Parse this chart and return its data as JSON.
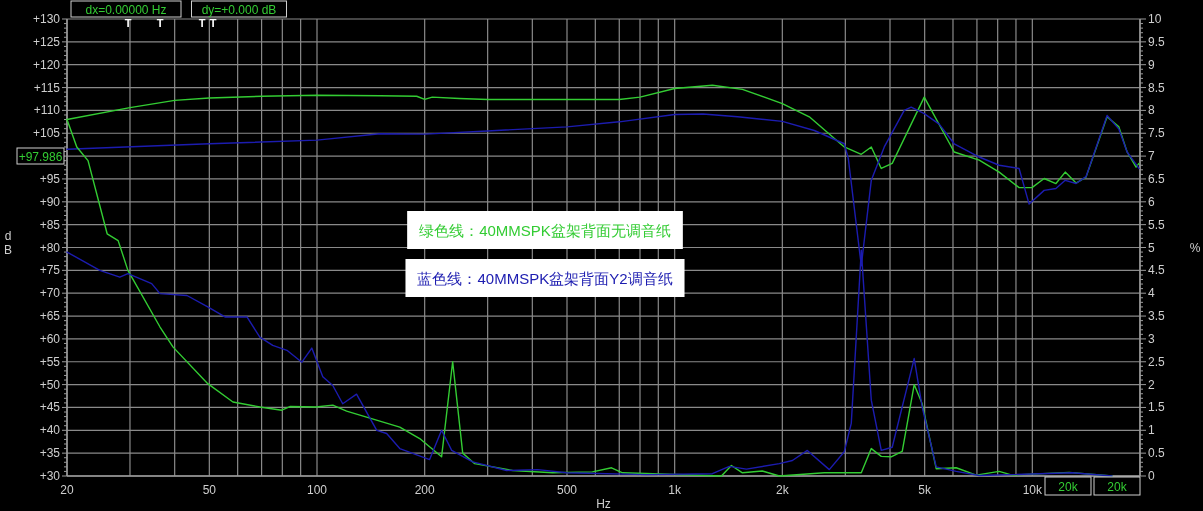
{
  "chart_data": {
    "type": "line",
    "xlabel": "Hz",
    "ylabel": "dB",
    "y2label": "%",
    "log": "x",
    "grid": true,
    "legend": "center",
    "marker": "none",
    "line_style": "solid",
    "xlim": [
      20,
      20000
    ],
    "ylim": [
      30,
      130
    ],
    "y2lim": [
      0,
      10
    ],
    "xticks": [
      {
        "value": 20,
        "label": "20"
      },
      {
        "value": 30,
        "label": null
      },
      {
        "value": 40,
        "label": null
      },
      {
        "value": 50,
        "label": "50"
      },
      {
        "value": 60,
        "label": null
      },
      {
        "value": 70,
        "label": null
      },
      {
        "value": 80,
        "label": null
      },
      {
        "value": 90,
        "label": null
      },
      {
        "value": 100,
        "label": "100"
      },
      {
        "value": 200,
        "label": "200"
      },
      {
        "value": 300,
        "label": null
      },
      {
        "value": 400,
        "label": null
      },
      {
        "value": 500,
        "label": "500"
      },
      {
        "value": 600,
        "label": null
      },
      {
        "value": 700,
        "label": null
      },
      {
        "value": 800,
        "label": null
      },
      {
        "value": 900,
        "label": null
      },
      {
        "value": 1000,
        "label": "1k"
      },
      {
        "value": 2000,
        "label": "2k"
      },
      {
        "value": 3000,
        "label": null
      },
      {
        "value": 4000,
        "label": null
      },
      {
        "value": 5000,
        "label": "5k"
      },
      {
        "value": 6000,
        "label": null
      },
      {
        "value": 7000,
        "label": null
      },
      {
        "value": 8000,
        "label": null
      },
      {
        "value": 9000,
        "label": null
      },
      {
        "value": 10000,
        "label": "10k"
      },
      {
        "value": 20000,
        "label": null
      }
    ],
    "yticks": [
      {
        "value": 30,
        "label": "+30"
      },
      {
        "value": 35,
        "label": "+35"
      },
      {
        "value": 40,
        "label": "+40"
      },
      {
        "value": 45,
        "label": "+45"
      },
      {
        "value": 50,
        "label": "+50"
      },
      {
        "value": 55,
        "label": "+55"
      },
      {
        "value": 60,
        "label": "+60"
      },
      {
        "value": 65,
        "label": "+65"
      },
      {
        "value": 70,
        "label": "+70"
      },
      {
        "value": 75,
        "label": "+75"
      },
      {
        "value": 80,
        "label": "+80"
      },
      {
        "value": 85,
        "label": "+85"
      },
      {
        "value": 90,
        "label": "+90"
      },
      {
        "value": 95,
        "label": "+95"
      },
      {
        "value": 100,
        "label": null
      },
      {
        "value": 105,
        "label": "+105"
      },
      {
        "value": 110,
        "label": "+110"
      },
      {
        "value": 115,
        "label": "+115"
      },
      {
        "value": 120,
        "label": "+120"
      },
      {
        "value": 125,
        "label": "+125"
      },
      {
        "value": 130,
        "label": "+130"
      }
    ],
    "y2ticks": [
      0,
      0.5,
      1,
      1.5,
      2,
      2.5,
      3,
      3.5,
      4,
      4.5,
      5,
      5.5,
      6,
      6.5,
      7,
      7.5,
      8,
      8.5,
      9,
      9.5,
      10
    ],
    "annotations": [
      "dx=0.00000  Hz",
      "dy=+0.000  dB",
      "20k",
      "20k",
      "+97.986",
      "T",
      "T",
      "T",
      "T"
    ],
    "series": [
      {
        "name": "绿色线：40MMSPK盆架背面无调音纸",
        "color": "#33cc33",
        "x": [
          20,
          30,
          40,
          50,
          70,
          100,
          150,
          190,
          200,
          210,
          250,
          300,
          700,
          800,
          1000,
          1275,
          1547,
          2000,
          2379,
          2980,
          3325,
          3546,
          3781,
          4057,
          4986,
          6047,
          7103,
          8077,
          9183,
          9978,
          10790,
          11640,
          12360,
          13250,
          14130,
          16180,
          17460,
          18410,
          19500,
          19870
        ],
        "values": [
          108.0,
          110.6,
          112.2,
          112.7,
          113.1,
          113.3,
          113.2,
          113.1,
          112.4,
          112.9,
          112.6,
          112.4,
          112.4,
          112.9,
          114.8,
          115.5,
          114.6,
          111.5,
          108.6,
          102.0,
          100.4,
          102.0,
          97.3,
          98.4,
          112.9,
          100.9,
          99.1,
          96.5,
          93.1,
          93.1,
          95.1,
          94.0,
          96.5,
          94.1,
          95.4,
          108.6,
          106.4,
          100.9,
          97.6,
          98.4
        ]
      },
      {
        "name": "蓝色线：40MMSPK盆架背面Y2调音纸",
        "color": "#1c1cb0",
        "x": [
          20,
          50,
          100,
          150,
          200,
          300,
          500,
          700,
          1000,
          1200,
          1500,
          2000,
          2457,
          2980,
          3058,
          3325,
          3546,
          3855,
          4384,
          4585,
          4986,
          5490,
          6047,
          7103,
          8077,
          9183,
          9795,
          10790,
          11640,
          12360,
          13250,
          14130,
          16180,
          17460,
          18410,
          19870
        ],
        "values": [
          101.5,
          102.7,
          103.5,
          104.9,
          104.8,
          105.5,
          106.4,
          107.5,
          109.1,
          109.2,
          108.6,
          107.6,
          105.6,
          102.7,
          99.5,
          76.0,
          94.7,
          102.0,
          110.0,
          110.7,
          109.3,
          107.0,
          102.7,
          99.8,
          98.0,
          97.3,
          89.5,
          92.5,
          92.9,
          94.7,
          94.0,
          95.5,
          108.9,
          105.9,
          100.9,
          97.3
        ]
      },
      {
        "color": "#33cc33",
        "axis": "y2",
        "x": [
          20,
          21.3,
          22.9,
          25.9,
          27.8,
          29.6,
          36.4,
          39.6,
          49.5,
          58.2,
          69.2,
          79.7,
          84,
          99.2,
          110.7,
          121,
          170.4,
          193.7,
          223,
          239.5,
          255.5,
          276,
          352,
          456,
          589,
          666,
          715,
          1351,
          1441,
          1547,
          1758,
          1962,
          2620,
          3325,
          3546,
          3781,
          4031,
          4328,
          4674,
          4921,
          5386,
          6125,
          6967,
          8077,
          8780,
          12680,
          16710
        ],
        "values": [
          7.8,
          7.2,
          6.9,
          5.3,
          5.15,
          4.5,
          3.26,
          2.82,
          2.02,
          1.62,
          1.51,
          1.44,
          1.52,
          1.51,
          1.55,
          1.42,
          1.07,
          0.82,
          0.42,
          2.5,
          0.5,
          0.27,
          0.12,
          0.07,
          0.09,
          0.18,
          0.07,
          0,
          0.23,
          0.07,
          0.11,
          0,
          0.07,
          0.07,
          0.6,
          0.43,
          0.42,
          0.54,
          2.0,
          1.58,
          0.16,
          0.18,
          0.02,
          0.1,
          0.02,
          0.08,
          0
        ]
      },
      {
        "color": "#1c1cb0",
        "axis": "y2",
        "x": [
          20,
          24.7,
          28.1,
          29.6,
          34.5,
          36.4,
          43.3,
          49.5,
          55.3,
          63.7,
          69.2,
          75.2,
          82.4,
          90.7,
          96.7,
          103.8,
          110.7,
          118,
          129,
          146.9,
          156.6,
          170.4,
          206.5,
          223,
          238,
          272.5,
          339,
          414,
          498.6,
          834,
          1275,
          1422,
          1587,
          1962,
          2134,
          2349,
          2706,
          2980,
          3117,
          3325,
          3546,
          3781,
          4057,
          4674,
          4921,
          5386,
          6125,
          7103,
          12920,
          16710
        ],
        "values": [
          4.9,
          4.5,
          4.35,
          4.43,
          4.21,
          3.99,
          3.95,
          3.7,
          3.48,
          3.48,
          3.04,
          2.86,
          2.75,
          2.49,
          2.8,
          2.17,
          1.98,
          1.58,
          1.79,
          1.0,
          0.93,
          0.6,
          0.36,
          1.0,
          0.56,
          0.31,
          0.12,
          0.14,
          0.07,
          0.03,
          0.05,
          0.21,
          0.15,
          0.27,
          0.34,
          0.56,
          0.14,
          0.53,
          1.15,
          4.94,
          1.66,
          0.56,
          0.63,
          2.57,
          1.51,
          0.2,
          0.1,
          0.01,
          0.07,
          0
        ]
      }
    ]
  }
}
